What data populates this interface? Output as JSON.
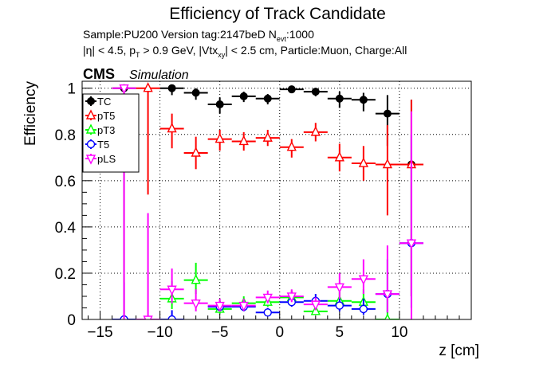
{
  "header": {
    "title": "Efficiency of Track Candidate",
    "sample_line": {
      "pre": "Sample:PU200   Version tag:2147beD  N",
      "sub": "evt",
      "post": ":1000"
    },
    "cuts_line": {
      "p1": "|η| < 4.5, p",
      "s1": "T",
      "p2": " > 0.9 GeV, |Vtx",
      "s2": "xy",
      "p3": "| < 2.5 cm, Particle:Muon, Charge:All"
    },
    "cms": "CMS",
    "simulation": "Simulation"
  },
  "chart_data": {
    "type": "scatter",
    "title": "Efficiency of Track Candidate",
    "xlabel": "z [cm]",
    "ylabel": "Efficiency",
    "xlim": [
      -16.5,
      16
    ],
    "ylim": [
      0,
      1.03
    ],
    "xticks": [
      -15,
      -10,
      -5,
      0,
      5,
      10
    ],
    "yticks": [
      0,
      0.2,
      0.4,
      0.6,
      0.8,
      1
    ],
    "xtick_labels": [
      "−15",
      "−10",
      "−5",
      "0",
      "5",
      "10"
    ],
    "ytick_labels": [
      "0",
      "0.2",
      "0.4",
      "0.6",
      "0.8",
      "1"
    ],
    "grid": true,
    "legend_position": "top-left",
    "bin_half_width": 1,
    "series": [
      {
        "name": "TC",
        "color": "#000000",
        "marker": "filled-circle",
        "points": [
          {
            "x": -13,
            "y": 1.0,
            "lo": 0.0,
            "hi": 1.0
          },
          {
            "x": -9,
            "y": 1.0,
            "lo": 0.97,
            "hi": 1.0
          },
          {
            "x": -7,
            "y": 0.98,
            "lo": 0.95,
            "hi": 1.0
          },
          {
            "x": -5,
            "y": 0.93,
            "lo": 0.89,
            "hi": 0.96
          },
          {
            "x": -3,
            "y": 0.965,
            "lo": 0.94,
            "hi": 0.985
          },
          {
            "x": -1,
            "y": 0.955,
            "lo": 0.93,
            "hi": 0.975
          },
          {
            "x": 1,
            "y": 0.995,
            "lo": 0.985,
            "hi": 1.0
          },
          {
            "x": 3,
            "y": 0.985,
            "lo": 0.965,
            "hi": 0.995
          },
          {
            "x": 5,
            "y": 0.955,
            "lo": 0.915,
            "hi": 0.985
          },
          {
            "x": 7,
            "y": 0.95,
            "lo": 0.9,
            "hi": 0.98
          },
          {
            "x": 9,
            "y": 0.89,
            "lo": 0.75,
            "hi": 0.97
          },
          {
            "x": 11,
            "y": 0.67,
            "lo": 0.1,
            "hi": 0.95
          }
        ]
      },
      {
        "name": "pT5",
        "color": "#ff0000",
        "marker": "open-triangle",
        "points": [
          {
            "x": -11,
            "y": 1.0,
            "lo": 0.54,
            "hi": 1.0
          },
          {
            "x": -9,
            "y": 0.825,
            "lo": 0.74,
            "hi": 0.89
          },
          {
            "x": -7,
            "y": 0.72,
            "lo": 0.65,
            "hi": 0.79
          },
          {
            "x": -5,
            "y": 0.78,
            "lo": 0.73,
            "hi": 0.82
          },
          {
            "x": -3,
            "y": 0.77,
            "lo": 0.73,
            "hi": 0.81
          },
          {
            "x": -1,
            "y": 0.785,
            "lo": 0.75,
            "hi": 0.82
          },
          {
            "x": 1,
            "y": 0.745,
            "lo": 0.7,
            "hi": 0.78
          },
          {
            "x": 3,
            "y": 0.81,
            "lo": 0.77,
            "hi": 0.85
          },
          {
            "x": 5,
            "y": 0.7,
            "lo": 0.64,
            "hi": 0.76
          },
          {
            "x": 7,
            "y": 0.675,
            "lo": 0.6,
            "hi": 0.75
          },
          {
            "x": 9,
            "y": 0.67,
            "lo": 0.45,
            "hi": 0.84
          },
          {
            "x": 11,
            "y": 0.67,
            "lo": 0.1,
            "hi": 0.95
          }
        ]
      },
      {
        "name": "pT3",
        "color": "#00ff00",
        "marker": "open-triangle",
        "points": [
          {
            "x": -9,
            "y": 0.09,
            "lo": 0.045,
            "hi": 0.165
          },
          {
            "x": -7,
            "y": 0.17,
            "lo": 0.11,
            "hi": 0.245
          },
          {
            "x": -5,
            "y": 0.045,
            "lo": 0.025,
            "hi": 0.08
          },
          {
            "x": -3,
            "y": 0.07,
            "lo": 0.045,
            "hi": 0.1
          },
          {
            "x": -1,
            "y": 0.075,
            "lo": 0.055,
            "hi": 0.105
          },
          {
            "x": 1,
            "y": 0.095,
            "lo": 0.07,
            "hi": 0.125
          },
          {
            "x": 3,
            "y": 0.035,
            "lo": 0.02,
            "hi": 0.065
          },
          {
            "x": 5,
            "y": 0.08,
            "lo": 0.05,
            "hi": 0.12
          },
          {
            "x": 7,
            "y": 0.075,
            "lo": 0.04,
            "hi": 0.13
          },
          {
            "x": 9,
            "y": 0.0,
            "lo": 0.0,
            "hi": 0.1
          }
        ]
      },
      {
        "name": "T5",
        "color": "#0000ff",
        "marker": "open-circle",
        "points": [
          {
            "x": -13,
            "y": 0.0,
            "lo": 0.0,
            "hi": 0.16
          },
          {
            "x": -9,
            "y": 0.0,
            "lo": 0.0,
            "hi": 0.04
          },
          {
            "x": -5,
            "y": 0.055,
            "lo": 0.035,
            "hi": 0.08
          },
          {
            "x": -3,
            "y": 0.055,
            "lo": 0.035,
            "hi": 0.08
          },
          {
            "x": -1,
            "y": 0.03,
            "lo": 0.015,
            "hi": 0.05
          },
          {
            "x": 1,
            "y": 0.075,
            "lo": 0.055,
            "hi": 0.1
          },
          {
            "x": 3,
            "y": 0.08,
            "lo": 0.055,
            "hi": 0.11
          },
          {
            "x": 5,
            "y": 0.06,
            "lo": 0.035,
            "hi": 0.09
          },
          {
            "x": 7,
            "y": 0.045,
            "lo": 0.02,
            "hi": 0.09
          },
          {
            "x": 9,
            "y": 0.11,
            "lo": 0.03,
            "hi": 0.26
          },
          {
            "x": 11,
            "y": 0.33,
            "lo": 0.05,
            "hi": 0.8
          }
        ]
      },
      {
        "name": "pLS",
        "color": "#ff00ff",
        "marker": "open-triangle-down",
        "points": [
          {
            "x": -13,
            "y": 1.0,
            "lo": 0.0,
            "hi": 1.0
          },
          {
            "x": -11,
            "y": 0.0,
            "lo": 0.0,
            "hi": 0.46
          },
          {
            "x": -9,
            "y": 0.13,
            "lo": 0.07,
            "hi": 0.22
          },
          {
            "x": -7,
            "y": 0.07,
            "lo": 0.035,
            "hi": 0.13
          },
          {
            "x": -5,
            "y": 0.06,
            "lo": 0.035,
            "hi": 0.09
          },
          {
            "x": -3,
            "y": 0.06,
            "lo": 0.04,
            "hi": 0.09
          },
          {
            "x": -1,
            "y": 0.095,
            "lo": 0.07,
            "hi": 0.125
          },
          {
            "x": 1,
            "y": 0.1,
            "lo": 0.075,
            "hi": 0.13
          },
          {
            "x": 3,
            "y": 0.065,
            "lo": 0.04,
            "hi": 0.095
          },
          {
            "x": 5,
            "y": 0.14,
            "lo": 0.09,
            "hi": 0.2
          },
          {
            "x": 7,
            "y": 0.175,
            "lo": 0.11,
            "hi": 0.26
          },
          {
            "x": 9,
            "y": 0.11,
            "lo": 0.03,
            "hi": 0.32
          },
          {
            "x": 11,
            "y": 0.33,
            "lo": 0.0,
            "hi": 0.9
          }
        ]
      }
    ]
  }
}
